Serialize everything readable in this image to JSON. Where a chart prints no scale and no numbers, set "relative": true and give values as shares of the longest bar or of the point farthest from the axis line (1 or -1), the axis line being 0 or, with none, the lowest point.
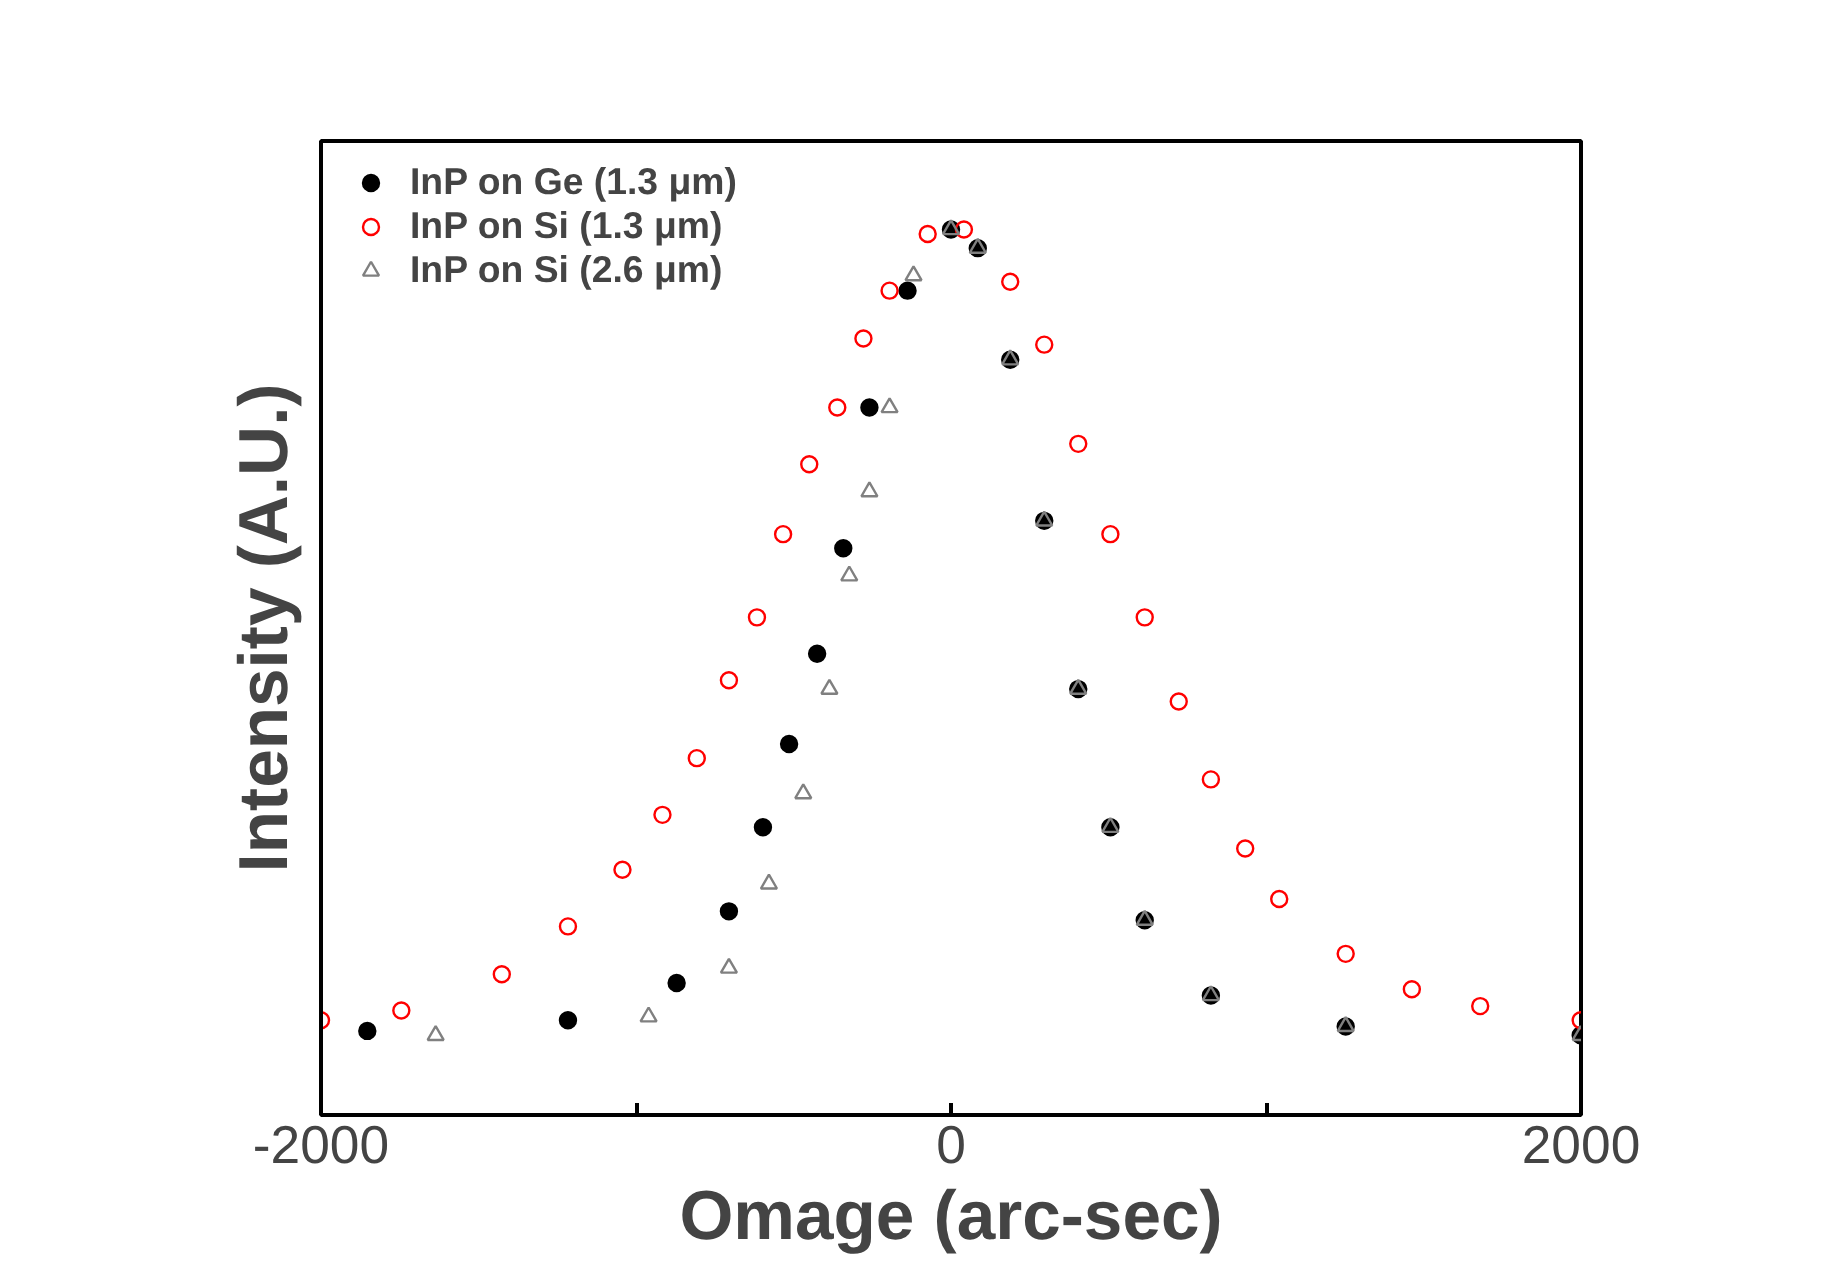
{
  "chart_data": {
    "type": "scatter",
    "xlabel": "Omage (arc-sec)",
    "ylabel": "Intensity (A.U.)",
    "relative": true,
    "tick_labels": "x",
    "legend": "top left",
    "grid": false,
    "xlim": [
      -2000,
      2000
    ],
    "xticks": [
      -2000,
      {
        "value": -1000,
        "label": null
      },
      0,
      {
        "value": 1000,
        "label": null
      },
      2000
    ],
    "series": [
      {
        "name": "InP on Ge (1.3 μm)",
        "color": "#000000",
        "marker": "circle",
        "x": [
          -1853,
          -1216,
          -871,
          -705,
          -597,
          -514,
          -425,
          -342,
          -259,
          -138,
          0,
          85,
          188,
          296,
          404,
          506,
          615,
          825,
          1253,
          1999
        ],
        "values": [
          0.095,
          0.107,
          0.149,
          0.23,
          0.325,
          0.419,
          0.521,
          0.64,
          0.799,
          0.931,
          1.0,
          0.979,
          0.853,
          0.671,
          0.481,
          0.325,
          0.22,
          0.135,
          0.1,
          0.09
        ]
      },
      {
        "name": "InP on Si (1.3 μm)",
        "color": "#ff0000",
        "marker": "circle_open",
        "x": [
          -2000,
          -1745,
          -1426,
          -1216,
          -1043,
          -916,
          -807,
          -705,
          -616,
          -533,
          -450,
          -361,
          -278,
          -195,
          -74,
          41,
          188,
          296,
          404,
          506,
          615,
          723,
          825,
          934,
          1042,
          1253,
          1463,
          1680,
          1999
        ],
        "values": [
          0.107,
          0.118,
          0.159,
          0.213,
          0.277,
          0.339,
          0.403,
          0.491,
          0.562,
          0.656,
          0.735,
          0.799,
          0.877,
          0.931,
          0.995,
          1.0,
          0.941,
          0.87,
          0.758,
          0.656,
          0.562,
          0.467,
          0.379,
          0.301,
          0.244,
          0.182,
          0.142,
          0.123,
          0.107
        ]
      },
      {
        "name": "InP on Si (2.6 μm)",
        "color": "#808080",
        "marker": "triangle_open",
        "x": [
          -1636,
          -960,
          -705,
          -578,
          -469,
          -386,
          -323,
          -259,
          -195,
          -119,
          0,
          85,
          188,
          296,
          404,
          506,
          615,
          825,
          1253,
          1999
        ],
        "values": [
          0.09,
          0.111,
          0.166,
          0.261,
          0.363,
          0.481,
          0.609,
          0.704,
          0.799,
          0.948,
          1.0,
          0.979,
          0.853,
          0.671,
          0.481,
          0.325,
          0.22,
          0.135,
          0.1,
          0.09
        ]
      }
    ]
  }
}
